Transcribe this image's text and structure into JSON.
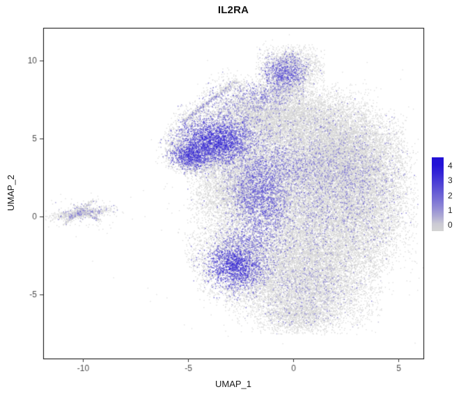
{
  "title": "IL2RA",
  "chart_data": {
    "type": "scatter",
    "title": "IL2RA",
    "subtitle": "",
    "xlabel": "UMAP_1",
    "ylabel": "UMAP_2",
    "x_ticks": [
      -10,
      -5,
      0,
      5
    ],
    "y_ticks": [
      -5,
      0,
      5,
      10
    ],
    "xlim": [
      -11.9,
      6.2
    ],
    "ylim": [
      -9.1,
      12.1
    ],
    "grid": false,
    "seed": 1234,
    "point_size_gray": 1.3,
    "point_size_colored": 1.5,
    "colors": {
      "low": "#d4d4d4",
      "high": "#2211d6",
      "panel_border": "#000000",
      "tick_mark": "#333333",
      "tick_label": "#4d4d4d",
      "background": "#ffffff"
    },
    "legend": {
      "position": "right",
      "ticks": [
        4,
        3,
        2,
        1,
        0
      ],
      "bar_domain": [
        -0.4,
        4.55
      ]
    },
    "clusters": [
      {
        "name": "top-knob",
        "cx": -0.15,
        "cy": 9.5,
        "sx": 0.75,
        "sy": 0.7,
        "rot": 0,
        "n": 2000
      },
      {
        "name": "knob-neck",
        "cx": -0.4,
        "cy": 8.4,
        "sx": 0.6,
        "sy": 0.6,
        "rot": 0,
        "n": 900
      },
      {
        "name": "upper-left-slope",
        "cx": -1.8,
        "cy": 6.9,
        "sx": 1.3,
        "sy": 0.85,
        "rot": -25,
        "n": 2600
      },
      {
        "name": "upper-mid",
        "cx": 0.3,
        "cy": 6.4,
        "sx": 1.7,
        "sy": 1.0,
        "rot": 0,
        "n": 4200
      },
      {
        "name": "left-arm",
        "cx": -3.7,
        "cy": 4.8,
        "sx": 1.15,
        "sy": 0.95,
        "rot": -20,
        "n": 4200
      },
      {
        "name": "left-point",
        "cx": -4.9,
        "cy": 3.8,
        "sx": 0.6,
        "sy": 0.55,
        "rot": -30,
        "n": 1300
      },
      {
        "name": "center-upper",
        "cx": 0.4,
        "cy": 3.6,
        "sx": 2.3,
        "sy": 1.4,
        "rot": 0,
        "n": 8200
      },
      {
        "name": "right-upper",
        "cx": 2.7,
        "cy": 4.3,
        "sx": 1.2,
        "sy": 1.2,
        "rot": 0,
        "n": 3200
      },
      {
        "name": "right-bulge",
        "cx": 3.2,
        "cy": 0.9,
        "sx": 1.25,
        "sy": 2.0,
        "rot": 0,
        "n": 5200
      },
      {
        "name": "center",
        "cx": 0.0,
        "cy": 0.9,
        "sx": 2.3,
        "sy": 1.6,
        "rot": 0,
        "n": 8600
      },
      {
        "name": "left-mid",
        "cx": -2.4,
        "cy": 1.6,
        "sx": 1.0,
        "sy": 1.1,
        "rot": 0,
        "n": 2400
      },
      {
        "name": "left-low",
        "cx": -2.8,
        "cy": -2.9,
        "sx": 1.0,
        "sy": 1.2,
        "rot": 15,
        "n": 3400
      },
      {
        "name": "center-low",
        "cx": 0.6,
        "cy": -2.2,
        "sx": 1.9,
        "sy": 1.3,
        "rot": 0,
        "n": 5200
      },
      {
        "name": "bottom-lobe",
        "cx": 0.5,
        "cy": -4.7,
        "sx": 1.7,
        "sy": 1.3,
        "rot": 0,
        "n": 5600
      },
      {
        "name": "bottom-tip",
        "cx": 0.3,
        "cy": -6.4,
        "sx": 0.9,
        "sy": 0.55,
        "rot": 0,
        "n": 900
      },
      {
        "name": "outlier-halo",
        "cx": 0.2,
        "cy": 1.5,
        "sx": 3.6,
        "sy": 4.6,
        "rot": 0,
        "n": 380,
        "halo": true
      },
      {
        "name": "island-core",
        "cx": -10.1,
        "cy": 0.2,
        "sx": 0.8,
        "sy": 0.16,
        "rot": 10,
        "n": 650
      },
      {
        "name": "island-halo",
        "cx": -10.0,
        "cy": 0.3,
        "sx": 1.0,
        "sy": 0.55,
        "rot": 0,
        "n": 110,
        "halo": true
      }
    ],
    "streaks": [
      {
        "name": "wisp-main",
        "x1": -5.25,
        "y1": 6.05,
        "x2": -2.7,
        "y2": 8.75,
        "w": 0.07,
        "n": 380
      },
      {
        "name": "wisp-halo",
        "x1": -5.1,
        "y1": 6.0,
        "x2": -2.8,
        "y2": 8.6,
        "w": 0.35,
        "n": 160
      },
      {
        "name": "wisp-lower",
        "x1": -4.4,
        "y1": 5.9,
        "x2": -3.0,
        "y2": 7.1,
        "w": 0.15,
        "n": 90
      },
      {
        "name": "island-arm-a",
        "x1": -10.9,
        "y1": -0.5,
        "x2": -9.5,
        "y2": 1.05,
        "w": 0.08,
        "n": 230
      },
      {
        "name": "island-arm-b",
        "x1": -10.35,
        "y1": 0.65,
        "x2": -9.15,
        "y2": -0.3,
        "w": 0.06,
        "n": 140
      }
    ],
    "hotspots": [
      {
        "name": "left-arm-high",
        "cx": -3.8,
        "cy": 4.9,
        "rx": 1.2,
        "ry": 1.0,
        "strength": 0.85,
        "vmax": 4
      },
      {
        "name": "left-point-high",
        "cx": -4.8,
        "cy": 3.9,
        "rx": 0.75,
        "ry": 0.6,
        "strength": 0.8,
        "vmax": 4
      },
      {
        "name": "central-streak",
        "cx": -1.5,
        "cy": 1.2,
        "rx": 0.85,
        "ry": 2.2,
        "strength": 0.5,
        "vmax": 3.5
      },
      {
        "name": "central-diffuse",
        "cx": -0.8,
        "cy": 3.2,
        "rx": 1.4,
        "ry": 1.1,
        "strength": 0.3,
        "vmax": 3
      },
      {
        "name": "bottom-left-high",
        "cx": -2.85,
        "cy": -3.2,
        "rx": 0.95,
        "ry": 1.05,
        "strength": 0.85,
        "vmax": 4
      },
      {
        "name": "bottom-left-bridge",
        "cx": -2.1,
        "cy": -1.5,
        "rx": 0.8,
        "ry": 1.0,
        "strength": 0.45,
        "vmax": 3.5
      },
      {
        "name": "top-knob-mid",
        "cx": -0.5,
        "cy": 9.2,
        "rx": 0.8,
        "ry": 0.8,
        "strength": 0.5,
        "vmax": 3.5
      },
      {
        "name": "top-left-mid",
        "cx": -1.6,
        "cy": 7.9,
        "rx": 0.9,
        "ry": 0.7,
        "strength": 0.35,
        "vmax": 3
      },
      {
        "name": "wisp-mid",
        "cx": -3.6,
        "cy": 7.3,
        "rx": 1.2,
        "ry": 1.0,
        "strength": 0.3,
        "vmax": 2.5
      },
      {
        "name": "right-sparse",
        "cx": 1.2,
        "cy": 1.8,
        "rx": 2.6,
        "ry": 2.6,
        "strength": 0.13,
        "vmax": 3
      },
      {
        "name": "bottom-sparse",
        "cx": 0.3,
        "cy": -4.5,
        "rx": 2.0,
        "ry": 1.5,
        "strength": 0.1,
        "vmax": 2.5
      },
      {
        "name": "island-sparse",
        "cx": -10.0,
        "cy": 0.2,
        "rx": 1.0,
        "ry": 0.5,
        "strength": 0.2,
        "vmax": 2.5
      }
    ],
    "sparse_expression_rate": 0.006
  }
}
